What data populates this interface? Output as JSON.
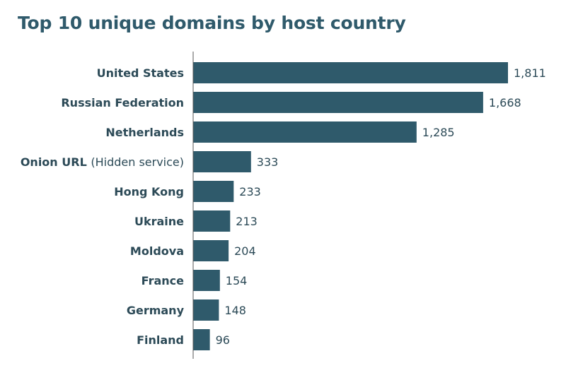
{
  "chart_data": {
    "type": "bar",
    "orientation": "horizontal",
    "title": "Top 10 unique domains by host country",
    "categories": [
      "United States",
      "Russian Federation",
      "Netherlands",
      "Onion URL (Hidden service)",
      "Hong Kong",
      "Ukraine",
      "Moldova",
      "France",
      "Germany",
      "Finland"
    ],
    "category_parts": [
      {
        "bold": "United States",
        "light": ""
      },
      {
        "bold": "Russian Federation",
        "light": ""
      },
      {
        "bold": "Netherlands",
        "light": ""
      },
      {
        "bold": "Onion URL ",
        "light": "(Hidden service)"
      },
      {
        "bold": "Hong Kong",
        "light": ""
      },
      {
        "bold": "Ukraine",
        "light": ""
      },
      {
        "bold": "Moldova",
        "light": ""
      },
      {
        "bold": "France",
        "light": ""
      },
      {
        "bold": "Germany",
        "light": ""
      },
      {
        "bold": "Finland",
        "light": ""
      }
    ],
    "values": [
      1811,
      1668,
      1285,
      333,
      233,
      213,
      204,
      154,
      148,
      96
    ],
    "value_labels": [
      "1,811",
      "1,668",
      "1,285",
      "333",
      "233",
      "213",
      "204",
      "154",
      "148",
      "96"
    ],
    "xlim": [
      0,
      1811
    ],
    "xlabel": "",
    "ylabel": "",
    "grid": false,
    "legend": "none",
    "colors": {
      "bar": "#2f5a6b",
      "title": "#2f5a6b",
      "text": "#2c4a57",
      "axis": "#555555"
    }
  }
}
